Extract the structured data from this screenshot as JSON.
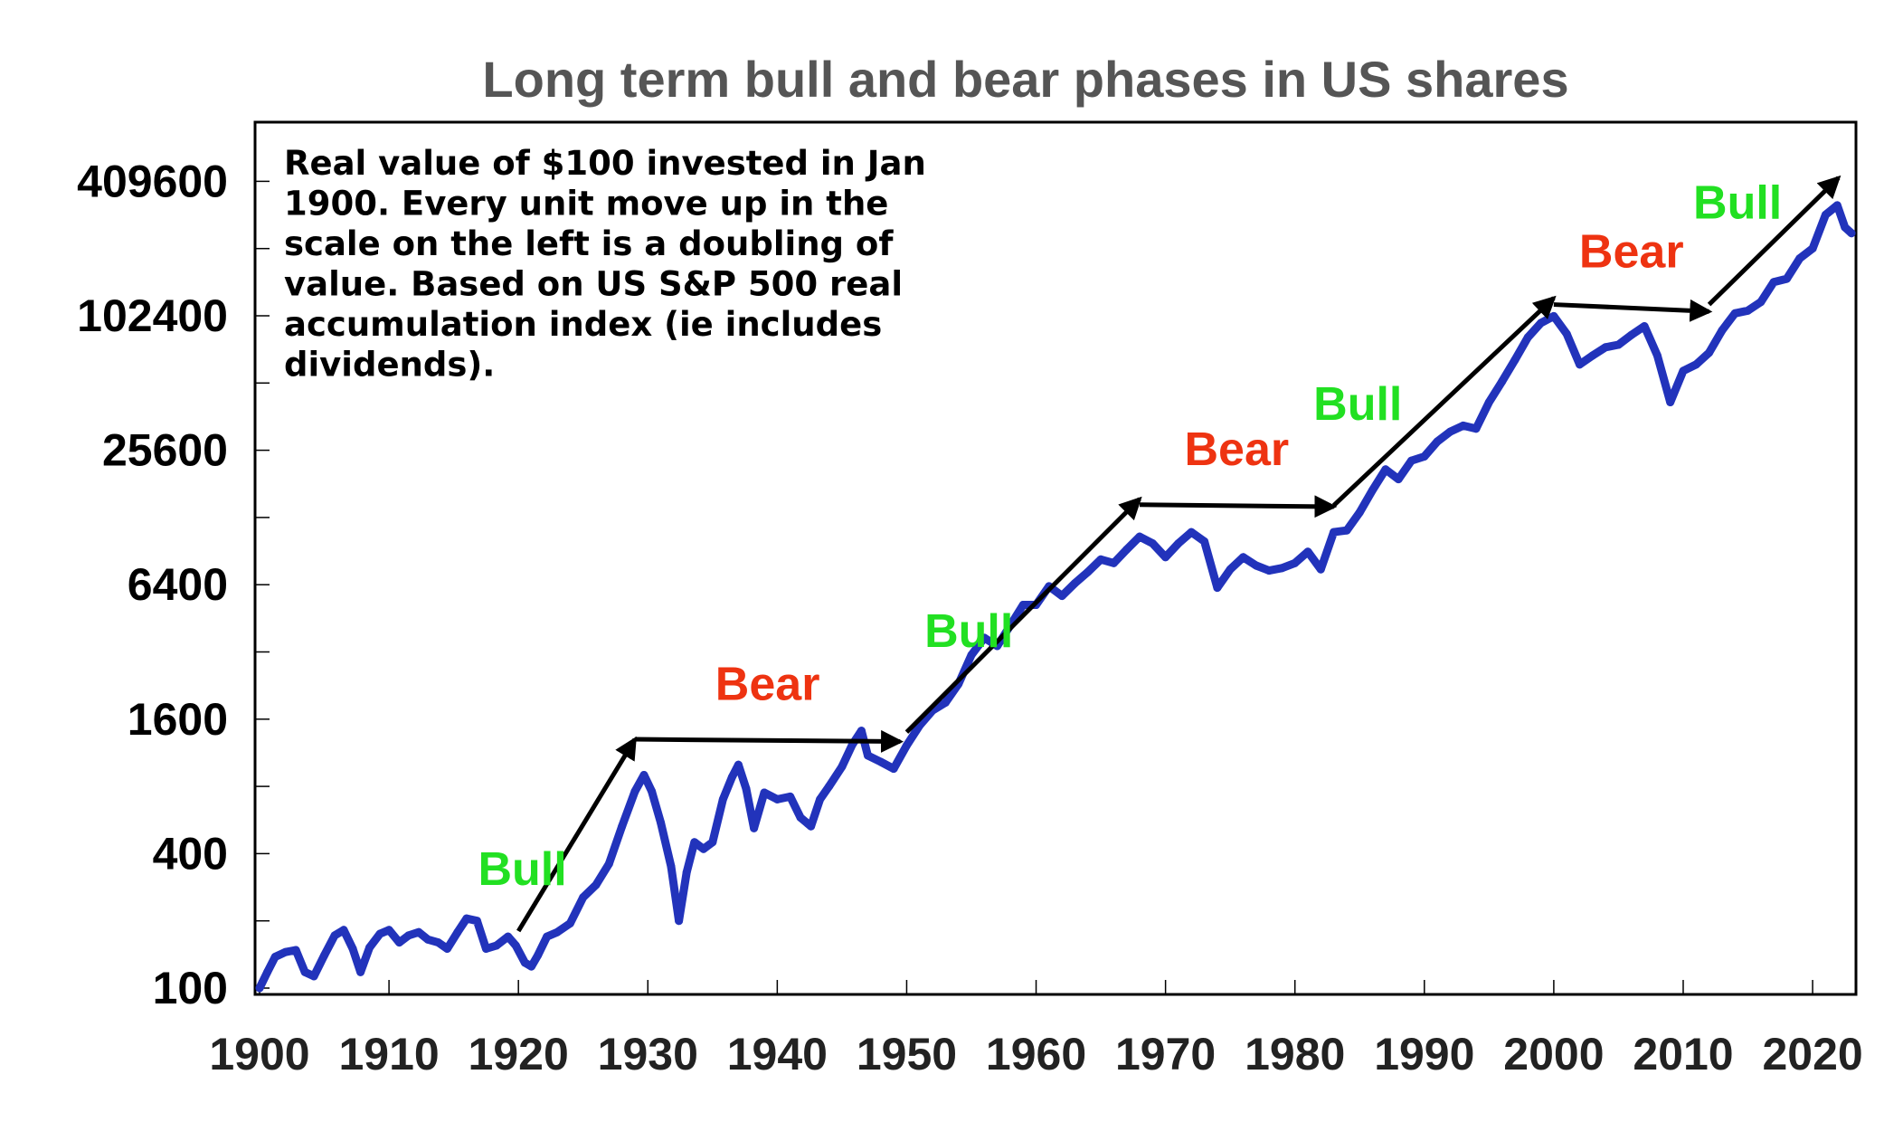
{
  "chart_data": {
    "type": "line",
    "title": "Long term bull and bear phases in US shares",
    "y_scale": "log2",
    "ylim": [
      100,
      819200
    ],
    "xlim": [
      1900,
      2023
    ],
    "y_tick_labels": [
      "100",
      "400",
      "1600",
      "6400",
      "25600",
      "102400",
      "409600"
    ],
    "y_ticks": [
      100,
      400,
      1600,
      6400,
      25600,
      102400,
      409600
    ],
    "x_tick_labels": [
      "1900",
      "1910",
      "1920",
      "1930",
      "1940",
      "1950",
      "1960",
      "1970",
      "1980",
      "1990",
      "2000",
      "2010",
      "2020"
    ],
    "x_ticks": [
      1900,
      1910,
      1920,
      1930,
      1940,
      1950,
      1960,
      1970,
      1980,
      1990,
      2000,
      2010,
      2020
    ],
    "grid": false,
    "annotation_text": "Real value of $100 invested in Jan 1900. Every unit move up in the scale on the left is a doubling of value. Based on US S&P 500 real accumulation index (ie includes dividends).",
    "annotation_lines": [
      "Real value of $100 invested in Jan",
      "1900. Every unit move up in the",
      "scale on the left is a doubling of",
      "value. Based on US S&P 500 real",
      "accumulation index (ie includes",
      "dividends)."
    ],
    "series": [
      {
        "color": "#2233BB",
        "points": [
          [
            1900.0,
            100
          ],
          [
            1900.6,
            118
          ],
          [
            1901.2,
            138
          ],
          [
            1902.0,
            145
          ],
          [
            1902.8,
            148
          ],
          [
            1903.5,
            118
          ],
          [
            1904.2,
            113
          ],
          [
            1905.0,
            140
          ],
          [
            1905.8,
            172
          ],
          [
            1906.5,
            182
          ],
          [
            1907.2,
            150
          ],
          [
            1907.8,
            118
          ],
          [
            1908.5,
            152
          ],
          [
            1909.3,
            175
          ],
          [
            1910.0,
            182
          ],
          [
            1910.8,
            160
          ],
          [
            1911.5,
            172
          ],
          [
            1912.3,
            178
          ],
          [
            1913.0,
            165
          ],
          [
            1913.8,
            160
          ],
          [
            1914.5,
            150
          ],
          [
            1915.3,
            178
          ],
          [
            1916.0,
            205
          ],
          [
            1916.8,
            200
          ],
          [
            1917.5,
            150
          ],
          [
            1918.3,
            155
          ],
          [
            1919.2,
            170
          ],
          [
            1919.8,
            155
          ],
          [
            1920.5,
            130
          ],
          [
            1921.0,
            125
          ],
          [
            1921.5,
            140
          ],
          [
            1922.2,
            170
          ],
          [
            1923.0,
            178
          ],
          [
            1924.0,
            195
          ],
          [
            1925.0,
            255
          ],
          [
            1926.0,
            290
          ],
          [
            1927.0,
            360
          ],
          [
            1928.0,
            530
          ],
          [
            1929.0,
            760
          ],
          [
            1929.7,
            900
          ],
          [
            1930.3,
            760
          ],
          [
            1931.0,
            550
          ],
          [
            1931.8,
            350
          ],
          [
            1932.4,
            200
          ],
          [
            1933.0,
            330
          ],
          [
            1933.6,
            450
          ],
          [
            1934.3,
            420
          ],
          [
            1935.0,
            450
          ],
          [
            1935.8,
            700
          ],
          [
            1936.5,
            880
          ],
          [
            1937.0,
            1000
          ],
          [
            1937.6,
            780
          ],
          [
            1938.2,
            520
          ],
          [
            1939.0,
            750
          ],
          [
            1940.0,
            700
          ],
          [
            1941.0,
            720
          ],
          [
            1941.8,
            580
          ],
          [
            1942.6,
            530
          ],
          [
            1943.3,
            700
          ],
          [
            1944.0,
            800
          ],
          [
            1945.0,
            980
          ],
          [
            1945.8,
            1230
          ],
          [
            1946.5,
            1420
          ],
          [
            1947.0,
            1100
          ],
          [
            1948.0,
            1030
          ],
          [
            1949.0,
            960
          ],
          [
            1950.0,
            1220
          ],
          [
            1951.0,
            1500
          ],
          [
            1952.0,
            1750
          ],
          [
            1953.0,
            1900
          ],
          [
            1954.0,
            2300
          ],
          [
            1955.0,
            3100
          ],
          [
            1956.0,
            3700
          ],
          [
            1957.0,
            3400
          ],
          [
            1958.0,
            4200
          ],
          [
            1959.0,
            5200
          ],
          [
            1960.0,
            5200
          ],
          [
            1961.0,
            6300
          ],
          [
            1962.0,
            5700
          ],
          [
            1963.0,
            6500
          ],
          [
            1964.0,
            7300
          ],
          [
            1965.0,
            8300
          ],
          [
            1966.0,
            8000
          ],
          [
            1967.0,
            9200
          ],
          [
            1968.0,
            10500
          ],
          [
            1969.0,
            9800
          ],
          [
            1970.0,
            8500
          ],
          [
            1971.0,
            9800
          ],
          [
            1972.0,
            11000
          ],
          [
            1973.0,
            10000
          ],
          [
            1974.0,
            6200
          ],
          [
            1975.0,
            7500
          ],
          [
            1976.0,
            8500
          ],
          [
            1977.0,
            7800
          ],
          [
            1978.0,
            7400
          ],
          [
            1979.0,
            7600
          ],
          [
            1980.0,
            8000
          ],
          [
            1981.0,
            9000
          ],
          [
            1982.0,
            7500
          ],
          [
            1983.0,
            11000
          ],
          [
            1984.0,
            11200
          ],
          [
            1985.0,
            13500
          ],
          [
            1986.0,
            17000
          ],
          [
            1987.0,
            21000
          ],
          [
            1988.0,
            19000
          ],
          [
            1989.0,
            23000
          ],
          [
            1990.0,
            24000
          ],
          [
            1991.0,
            28000
          ],
          [
            1992.0,
            31000
          ],
          [
            1993.0,
            33000
          ],
          [
            1994.0,
            32000
          ],
          [
            1995.0,
            42000
          ],
          [
            1996.0,
            52000
          ],
          [
            1997.0,
            65000
          ],
          [
            1998.0,
            82000
          ],
          [
            1999.0,
            95000
          ],
          [
            2000.0,
            102000
          ],
          [
            2001.0,
            85000
          ],
          [
            2002.0,
            62000
          ],
          [
            2003.0,
            68000
          ],
          [
            2004.0,
            74000
          ],
          [
            2005.0,
            76000
          ],
          [
            2006.0,
            84000
          ],
          [
            2007.0,
            92000
          ],
          [
            2008.0,
            68000
          ],
          [
            2009.0,
            42000
          ],
          [
            2010.0,
            58000
          ],
          [
            2011.0,
            62000
          ],
          [
            2012.0,
            70000
          ],
          [
            2013.0,
            88000
          ],
          [
            2014.0,
            105000
          ],
          [
            2015.0,
            108000
          ],
          [
            2016.0,
            118000
          ],
          [
            2017.0,
            145000
          ],
          [
            2018.0,
            150000
          ],
          [
            2019.0,
            185000
          ],
          [
            2020.0,
            205000
          ],
          [
            2021.0,
            290000
          ],
          [
            2021.9,
            320000
          ],
          [
            2022.5,
            255000
          ],
          [
            2023.0,
            240000
          ]
        ]
      }
    ],
    "phases": [
      {
        "label": "Bull",
        "kind": "bull",
        "from": [
          1920.0,
          180
        ],
        "to": [
          1929.0,
          1300
        ]
      },
      {
        "label": "Bear",
        "kind": "bear",
        "from": [
          1929.0,
          1300
        ],
        "to": [
          1949.5,
          1270
        ]
      },
      {
        "label": "Bull",
        "kind": "bull",
        "from": [
          1950.0,
          1400
        ],
        "to": [
          1968.0,
          15500
        ]
      },
      {
        "label": "Bear",
        "kind": "bear",
        "from": [
          1968.0,
          14600
        ],
        "to": [
          1983.0,
          14300
        ]
      },
      {
        "label": "Bull",
        "kind": "bull",
        "from": [
          1983.0,
          14500
        ],
        "to": [
          2000.0,
          123000
        ]
      },
      {
        "label": "Bear",
        "kind": "bear",
        "from": [
          2000.0,
          115000
        ],
        "to": [
          2012.0,
          107000
        ]
      },
      {
        "label": "Bull",
        "kind": "bull",
        "from": [
          2012.0,
          115000
        ],
        "to": [
          2022.0,
          425000
        ]
      }
    ],
    "colors": {
      "line": "#2233BB",
      "bull": "#22E022",
      "bear": "#EE3311",
      "arrow": "#000000",
      "title": "#555555",
      "ticks": "#222222"
    }
  }
}
